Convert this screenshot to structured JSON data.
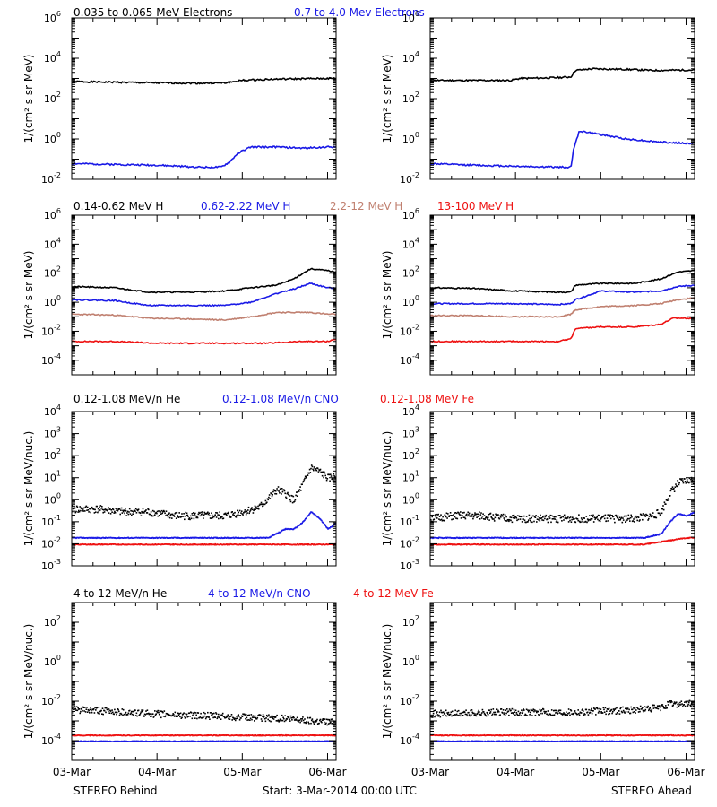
{
  "colors": {
    "black": "#000000",
    "blue": "#1a1ae6",
    "tan": "#c08070",
    "red": "#ee1111"
  },
  "ylabel_energy": "1/(cm² s sr MeV)",
  "ylabel_nuc": "1/(cm² s sr MeV/nuc.)",
  "footer": {
    "left": "STEREO Behind",
    "center": "Start:  3-Mar-2014 00:00 UTC",
    "right": "STEREO Ahead"
  },
  "x_ticks": [
    "03-Mar",
    "04-Mar",
    "05-Mar",
    "06-Mar"
  ],
  "rows": [
    {
      "legends": [
        {
          "text": "0.035 to 0.065 MeV Electrons",
          "color": "black"
        },
        {
          "text": "0.7 to 4.0 Mev Electrons",
          "color": "blue"
        }
      ],
      "ylabel": "energy"
    },
    {
      "legends": [
        {
          "text": "0.14-0.62 MeV H",
          "color": "black"
        },
        {
          "text": "0.62-2.22 MeV H",
          "color": "blue"
        },
        {
          "text": "2.2-12 MeV H",
          "color": "tan"
        },
        {
          "text": "13-100 MeV H",
          "color": "red"
        }
      ],
      "ylabel": "energy"
    },
    {
      "legends": [
        {
          "text": "0.12-1.08 MeV/n He",
          "color": "black"
        },
        {
          "text": "0.12-1.08 MeV/n CNO",
          "color": "blue"
        },
        {
          "text": "0.12-1.08 MeV Fe",
          "color": "red"
        }
      ],
      "ylabel": "nuc"
    },
    {
      "legends": [
        {
          "text": "4 to 12 MeV/n He",
          "color": "black"
        },
        {
          "text": "4 to 12 MeV/n CNO",
          "color": "blue"
        },
        {
          "text": "4 to 12 MeV Fe",
          "color": "red"
        }
      ],
      "ylabel": "nuc"
    }
  ],
  "chart_data": [
    {
      "type": "scatter",
      "title": "",
      "spacecraft": "STEREO Behind",
      "xlim": [
        0,
        3.1
      ],
      "ylim": [
        0.01,
        1000000
      ],
      "yscale": "log",
      "yticks": [
        0.01,
        1,
        100,
        10000,
        1000000
      ],
      "series": [
        {
          "name": "0.035 to 0.065 MeV Electrons",
          "color": "black",
          "style": "line",
          "x": [
            0,
            0.5,
            1.0,
            1.5,
            1.8,
            2.0,
            2.3,
            2.6,
            3.0,
            3.1
          ],
          "y": [
            700,
            650,
            600,
            580,
            600,
            800,
            900,
            950,
            1000,
            1000
          ]
        },
        {
          "name": "0.7 to 4.0 Mev Electrons",
          "color": "blue",
          "style": "line",
          "x": [
            0,
            0.5,
            1.0,
            1.5,
            1.75,
            1.85,
            1.95,
            2.1,
            2.4,
            2.7,
            3.0,
            3.1
          ],
          "y": [
            0.06,
            0.055,
            0.05,
            0.04,
            0.04,
            0.07,
            0.2,
            0.4,
            0.4,
            0.35,
            0.4,
            0.4
          ]
        }
      ]
    },
    {
      "type": "scatter",
      "title": "",
      "spacecraft": "STEREO Ahead",
      "xlim": [
        0,
        3.1
      ],
      "ylim": [
        0.01,
        1000000
      ],
      "yscale": "log",
      "yticks": [
        0.01,
        1,
        100,
        10000,
        1000000
      ],
      "series": [
        {
          "name": "0.035 to 0.065 MeV Electrons",
          "color": "black",
          "style": "line",
          "x": [
            0,
            0.5,
            0.95,
            1.05,
            1.5,
            1.65,
            1.7,
            1.9,
            2.3,
            2.6,
            3.0,
            3.1
          ],
          "y": [
            800,
            800,
            800,
            1000,
            1100,
            1200,
            2500,
            3000,
            2800,
            2500,
            2600,
            2600
          ]
        },
        {
          "name": "0.7 to 4.0 Mev Electrons",
          "color": "blue",
          "style": "line",
          "x": [
            0,
            0.5,
            1.0,
            1.5,
            1.65,
            1.68,
            1.75,
            1.95,
            2.3,
            2.7,
            3.0,
            3.1
          ],
          "y": [
            0.06,
            0.05,
            0.045,
            0.04,
            0.04,
            0.3,
            2.5,
            1.8,
            1.0,
            0.7,
            0.6,
            0.6
          ]
        }
      ]
    },
    {
      "type": "scatter",
      "title": "",
      "spacecraft": "STEREO Behind",
      "xlim": [
        0,
        3.1
      ],
      "ylim": [
        1e-05,
        1000000
      ],
      "yscale": "log",
      "yticks": [
        0.0001,
        0.01,
        1,
        100,
        10000,
        1000000
      ],
      "series": [
        {
          "name": "0.14-0.62 MeV H",
          "color": "black",
          "style": "line",
          "x": [
            0,
            0.5,
            0.9,
            1.4,
            1.8,
            2.1,
            2.4,
            2.6,
            2.8,
            3.0,
            3.1
          ],
          "y": [
            12,
            10,
            5,
            5,
            6,
            10,
            15,
            40,
            200,
            150,
            120
          ]
        },
        {
          "name": "0.62-2.22 MeV H",
          "color": "blue",
          "style": "line",
          "x": [
            0,
            0.5,
            0.9,
            1.4,
            1.8,
            2.1,
            2.4,
            2.6,
            2.8,
            3.0,
            3.1
          ],
          "y": [
            1.5,
            1.3,
            0.6,
            0.6,
            0.6,
            1.0,
            4.0,
            8.0,
            20,
            10,
            9
          ]
        },
        {
          "name": "2.2-12 MeV H",
          "color": "tan",
          "style": "line",
          "x": [
            0,
            0.5,
            0.9,
            1.4,
            1.8,
            2.1,
            2.4,
            2.6,
            2.8,
            3.0,
            3.1
          ],
          "y": [
            0.15,
            0.13,
            0.08,
            0.07,
            0.06,
            0.1,
            0.2,
            0.2,
            0.2,
            0.15,
            0.15
          ]
        },
        {
          "name": "13-100 MeV H",
          "color": "red",
          "style": "line",
          "x": [
            0,
            0.5,
            1.0,
            1.5,
            1.9,
            2.3,
            2.7,
            3.0,
            3.1
          ],
          "y": [
            0.002,
            0.002,
            0.0015,
            0.0015,
            0.0015,
            0.0015,
            0.002,
            0.002,
            0.003
          ]
        }
      ]
    },
    {
      "type": "scatter",
      "title": "",
      "spacecraft": "STEREO Ahead",
      "xlim": [
        0,
        3.1
      ],
      "ylim": [
        1e-05,
        1000000
      ],
      "yscale": "log",
      "yticks": [
        0.0001,
        0.01,
        1,
        100,
        10000,
        1000000
      ],
      "series": [
        {
          "name": "0.14-0.62 MeV H",
          "color": "black",
          "style": "line",
          "x": [
            0,
            0.5,
            1.0,
            1.5,
            1.65,
            1.7,
            2.0,
            2.4,
            2.7,
            2.9,
            3.1
          ],
          "y": [
            10,
            9,
            6,
            5,
            5,
            15,
            20,
            20,
            40,
            120,
            150
          ]
        },
        {
          "name": "0.62-2.22 MeV H",
          "color": "blue",
          "style": "line",
          "x": [
            0,
            0.5,
            1.0,
            1.5,
            1.65,
            1.7,
            2.0,
            2.4,
            2.7,
            2.9,
            3.1
          ],
          "y": [
            0.8,
            0.8,
            0.8,
            0.7,
            0.8,
            1.5,
            6,
            5,
            6,
            12,
            15
          ]
        },
        {
          "name": "2.2-12 MeV H",
          "color": "tan",
          "style": "line",
          "x": [
            0,
            0.5,
            1.0,
            1.5,
            1.65,
            1.7,
            2.0,
            2.4,
            2.7,
            2.9,
            3.1
          ],
          "y": [
            0.12,
            0.12,
            0.1,
            0.1,
            0.15,
            0.3,
            0.5,
            0.6,
            0.8,
            1.5,
            2
          ]
        },
        {
          "name": "13-100 MeV H",
          "color": "red",
          "style": "line",
          "x": [
            0,
            0.5,
            1.0,
            1.5,
            1.65,
            1.7,
            2.0,
            2.4,
            2.7,
            2.85,
            3.1
          ],
          "y": [
            0.002,
            0.002,
            0.002,
            0.002,
            0.003,
            0.015,
            0.02,
            0.02,
            0.03,
            0.08,
            0.08
          ]
        }
      ]
    },
    {
      "type": "scatter",
      "title": "",
      "spacecraft": "STEREO Behind",
      "xlim": [
        0,
        3.1
      ],
      "ylim": [
        0.001,
        10000
      ],
      "yscale": "log",
      "yticks": [
        0.001,
        0.01,
        0.1,
        1,
        10,
        100,
        1000,
        10000
      ],
      "series": [
        {
          "name": "0.12-1.08 MeV/n He",
          "color": "black",
          "style": "dots",
          "x": [
            0,
            0.3,
            0.6,
            0.9,
            1.2,
            1.5,
            1.8,
            2.0,
            2.2,
            2.4,
            2.5,
            2.6,
            2.7,
            2.8,
            2.9,
            3.0,
            3.1
          ],
          "y": [
            0.4,
            0.4,
            0.3,
            0.3,
            0.2,
            0.2,
            0.2,
            0.3,
            0.5,
            3,
            2,
            1,
            5,
            30,
            20,
            10,
            12
          ]
        },
        {
          "name": "0.12-1.08 MeV/n CNO",
          "color": "blue",
          "style": "dots",
          "x": [
            0,
            0.5,
            1.0,
            1.5,
            2.0,
            2.3,
            2.5,
            2.6,
            2.7,
            2.8,
            2.9,
            3.0,
            3.1
          ],
          "y": [
            0.02,
            0.02,
            0.02,
            0.02,
            0.02,
            0.02,
            0.05,
            0.05,
            0.1,
            0.3,
            0.15,
            0.05,
            0.1
          ]
        },
        {
          "name": "0.12-1.08 MeV Fe",
          "color": "red",
          "style": "dots",
          "x": [
            0,
            0.5,
            1.0,
            1.5,
            2.0,
            2.5,
            3.0,
            3.1
          ],
          "y": [
            0.01,
            0.01,
            0.01,
            0.01,
            0.01,
            0.01,
            0.01,
            0.01
          ]
        }
      ]
    },
    {
      "type": "scatter",
      "title": "",
      "spacecraft": "STEREO Ahead",
      "xlim": [
        0,
        3.1
      ],
      "ylim": [
        0.001,
        10000
      ],
      "yscale": "log",
      "yticks": [
        0.001,
        0.01,
        0.1,
        1,
        10,
        100,
        1000,
        10000
      ],
      "series": [
        {
          "name": "0.12-1.08 MeV/n He",
          "color": "black",
          "style": "dots",
          "x": [
            0,
            0.3,
            0.6,
            0.9,
            1.2,
            1.5,
            1.8,
            2.1,
            2.4,
            2.6,
            2.7,
            2.8,
            2.9,
            3.0,
            3.1
          ],
          "y": [
            0.15,
            0.2,
            0.2,
            0.15,
            0.15,
            0.15,
            0.15,
            0.15,
            0.15,
            0.2,
            0.3,
            2,
            6,
            8,
            8
          ]
        },
        {
          "name": "0.12-1.08 MeV/n CNO",
          "color": "blue",
          "style": "dots",
          "x": [
            0,
            0.5,
            1.0,
            1.5,
            2.0,
            2.5,
            2.7,
            2.8,
            2.9,
            3.0,
            3.1
          ],
          "y": [
            0.02,
            0.02,
            0.02,
            0.02,
            0.02,
            0.02,
            0.03,
            0.1,
            0.25,
            0.2,
            0.3
          ]
        },
        {
          "name": "0.12-1.08 MeV Fe",
          "color": "red",
          "style": "dots",
          "x": [
            0,
            0.5,
            1.0,
            1.5,
            2.0,
            2.5,
            3.0,
            3.1
          ],
          "y": [
            0.01,
            0.01,
            0.01,
            0.01,
            0.01,
            0.01,
            0.02,
            0.02
          ]
        }
      ]
    },
    {
      "type": "scatter",
      "title": "",
      "spacecraft": "STEREO Behind",
      "xlim": [
        0,
        3.1
      ],
      "ylim": [
        1e-05,
        1000
      ],
      "yscale": "log",
      "yticks": [
        0.0001,
        0.01,
        1,
        100
      ],
      "series": [
        {
          "name": "4 to 12 MeV/n He",
          "color": "black",
          "style": "dots",
          "x": [
            0,
            0.3,
            0.6,
            0.9,
            1.2,
            1.5,
            1.8,
            2.1,
            2.4,
            2.7,
            3.0,
            3.1
          ],
          "y": [
            0.004,
            0.0035,
            0.003,
            0.0025,
            0.0022,
            0.002,
            0.0018,
            0.0016,
            0.0015,
            0.0012,
            0.001,
            0.0009
          ]
        },
        {
          "name": "4 to 12 MeV/n CNO",
          "color": "blue",
          "style": "dots",
          "x": [
            0,
            0.5,
            1.0,
            1.5,
            2.0,
            2.5,
            3.0,
            3.1
          ],
          "y": [
            0.0001,
            0.0001,
            0.0001,
            0.0001,
            0.0001,
            0.0001,
            0.0001,
            0.0001
          ]
        },
        {
          "name": "4 to 12 MeV Fe",
          "color": "red",
          "style": "dots",
          "x": [
            0,
            0.5,
            1.0,
            1.5,
            2.0,
            2.5,
            3.0
          ],
          "y": [
            0.0002,
            0.0002,
            0.0002,
            0.0002,
            0.0002,
            0.0002,
            0.0002
          ]
        }
      ]
    },
    {
      "type": "scatter",
      "title": "",
      "spacecraft": "STEREO Ahead",
      "xlim": [
        0,
        3.1
      ],
      "ylim": [
        1e-05,
        1000
      ],
      "yscale": "log",
      "yticks": [
        0.0001,
        0.01,
        1,
        100
      ],
      "series": [
        {
          "name": "4 to 12 MeV/n He",
          "color": "black",
          "style": "dots",
          "x": [
            0,
            0.3,
            0.6,
            0.9,
            1.2,
            1.5,
            1.8,
            2.1,
            2.4,
            2.7,
            2.8,
            2.9,
            3.0,
            3.1
          ],
          "y": [
            0.0025,
            0.0025,
            0.0028,
            0.003,
            0.003,
            0.003,
            0.0032,
            0.0035,
            0.004,
            0.005,
            0.008,
            0.008,
            0.008,
            0.008
          ]
        },
        {
          "name": "4 to 12 MeV/n CNO",
          "color": "blue",
          "style": "dots",
          "x": [
            0,
            0.5,
            1.0,
            1.5,
            2.0,
            2.5,
            3.0,
            3.1
          ],
          "y": [
            0.0001,
            0.0001,
            0.0001,
            0.0001,
            0.0001,
            0.0001,
            0.0001,
            0.0001
          ]
        },
        {
          "name": "4 to 12 MeV Fe",
          "color": "red",
          "style": "dots",
          "x": [
            0,
            0.5,
            1.0,
            1.5,
            2.0,
            2.5,
            3.0
          ],
          "y": [
            0.0002,
            0.0002,
            0.0002,
            0.0002,
            0.0002,
            0.0002,
            0.0002
          ]
        }
      ]
    }
  ]
}
